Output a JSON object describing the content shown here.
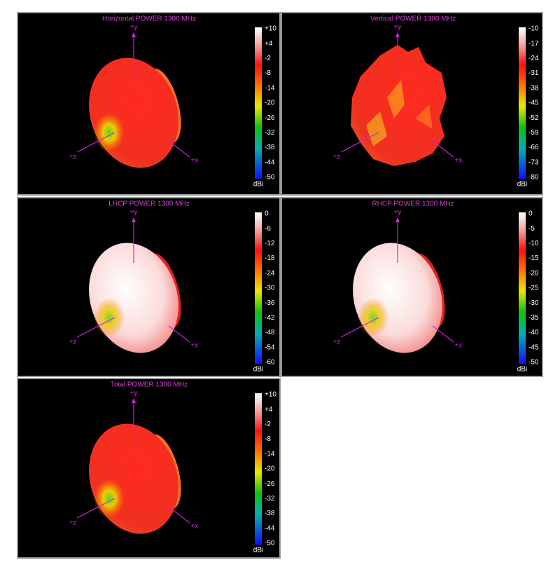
{
  "panels": [
    {
      "title": "Horizontal POWER 1300  MHz",
      "axes": {
        "y": "+y",
        "x": "+x",
        "z": "+z"
      },
      "colorbar": {
        "ticks": [
          "+10",
          "+4",
          "-2",
          "-8",
          "-14",
          "-20",
          "-26",
          "-32",
          "-38",
          "-44",
          "-50"
        ],
        "unit": "dBi"
      }
    },
    {
      "title": "Vertical POWER 1300  MHz",
      "axes": {
        "y": "+y",
        "x": "+x",
        "z": "+z"
      },
      "colorbar": {
        "ticks": [
          "-10",
          "-17",
          "-24",
          "-31",
          "-38",
          "-45",
          "-52",
          "-59",
          "-66",
          "-73",
          "-80"
        ],
        "unit": "dBi"
      }
    },
    {
      "title": "LHCP POWER 1300  MHz",
      "axes": {
        "y": "+y",
        "x": "+x",
        "z": "+z"
      },
      "colorbar": {
        "ticks": [
          "0",
          "-6",
          "-12",
          "-18",
          "-24",
          "-30",
          "-36",
          "-42",
          "-48",
          "-54",
          "-60"
        ],
        "unit": "dBi"
      }
    },
    {
      "title": "RHCP POWER 1300  MHz",
      "axes": {
        "y": "+y",
        "x": "+x",
        "z": "+z"
      },
      "colorbar": {
        "ticks": [
          "0",
          "-5",
          "-10",
          "-15",
          "-20",
          "-25",
          "-30",
          "-35",
          "-40",
          "-45",
          "-50"
        ],
        "unit": "dBi"
      }
    },
    {
      "title": "Total POWER 1300  MHz",
      "axes": {
        "y": "+y",
        "x": "+x",
        "z": "+z"
      },
      "colorbar": {
        "ticks": [
          "+10",
          "+4",
          "-2",
          "-8",
          "-14",
          "-20",
          "-26",
          "-32",
          "-38",
          "-44",
          "-50"
        ],
        "unit": "dBi"
      }
    }
  ]
}
